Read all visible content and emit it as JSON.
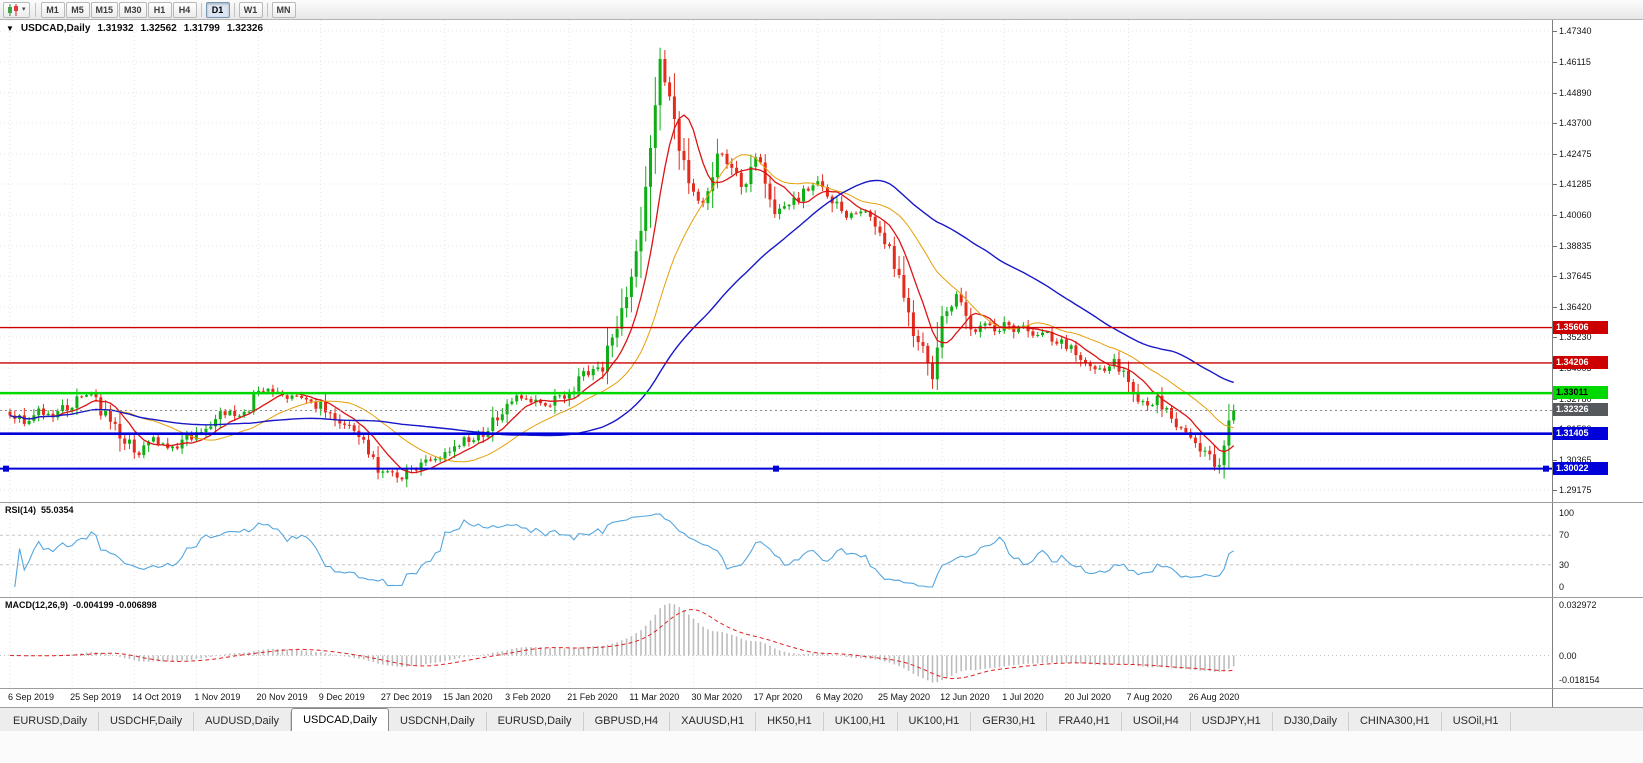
{
  "toolbar": {
    "chart_type_button": {
      "icon": "candlestick-chart-icon",
      "caret": "▾"
    },
    "timeframe_groups": [
      [
        "M1",
        "M5",
        "M15",
        "M30",
        "H1",
        "H4"
      ],
      [
        "D1"
      ],
      [
        "W1"
      ],
      [
        "MN"
      ]
    ],
    "active_timeframe": "D1"
  },
  "chart": {
    "dropdown_arrow": "▼",
    "symbol_label": "USDCAD,Daily",
    "ohlc_display": {
      "open": "1.31932",
      "high": "1.32562",
      "low": "1.31799",
      "close": "1.32326"
    }
  },
  "rsi_panel": {
    "name": "RSI(14)",
    "value": "55.0354"
  },
  "macd_panel": {
    "name": "MACD(12,26,9)",
    "values": "-0.004199 -0.006898"
  },
  "tab_bar": {
    "tabs": [
      {
        "label": "EURUSD,Daily",
        "active": false
      },
      {
        "label": "USDCHF,Daily",
        "active": false
      },
      {
        "label": "AUDUSD,Daily",
        "active": false
      },
      {
        "label": "USDCAD,Daily",
        "active": true
      },
      {
        "label": "USDCNH,Daily",
        "active": false
      },
      {
        "label": "EURUSD,Daily",
        "active": false
      },
      {
        "label": "GBPUSD,H4",
        "active": false
      },
      {
        "label": "XAUUSD,H1",
        "active": false
      },
      {
        "label": "HK50,H1",
        "active": false
      },
      {
        "label": "UK100,H1",
        "active": false
      },
      {
        "label": "UK100,H1",
        "active": false
      },
      {
        "label": "GER30,H1",
        "active": false
      },
      {
        "label": "FRA40,H1",
        "active": false
      },
      {
        "label": "USOil,H4",
        "active": false
      },
      {
        "label": "USDJPY,H1",
        "active": false
      },
      {
        "label": "DJ30,Daily",
        "active": false
      },
      {
        "label": "CHINA300,H1",
        "active": false
      },
      {
        "label": "USOil,H1",
        "active": false
      }
    ]
  },
  "colors": {
    "bull": "#0fae14",
    "bear": "#e32b1e",
    "ma_fast": "#dc1414",
    "ma_mid": "#e6a00a",
    "ma_slow": "#1818c8",
    "rsi_line": "#54a6df",
    "macd_hist": "#bdbdbd",
    "macd_signal": "#dd2222",
    "grid": "#e4e4e4",
    "level_dash": "#c6c6c6",
    "axis_text": "#141414",
    "current_price_badge": "#55585c"
  },
  "chart_data": {
    "type": "candlestick",
    "title": "USDCAD,Daily",
    "last_ohlc": {
      "open": 1.31932,
      "high": 1.32562,
      "low": 1.31799,
      "close": 1.32326
    },
    "price_range": [
      1.28703,
      1.47776
    ],
    "price_ticks": [
      "1.47340",
      "1.46115",
      "1.44890",
      "1.43700",
      "1.42475",
      "1.41285",
      "1.40060",
      "1.38835",
      "1.37645",
      "1.36420",
      "1.35230",
      "1.34005",
      "1.32780",
      "1.31590",
      "1.30365",
      "1.29175"
    ],
    "x_labels": [
      "6 Sep 2019",
      "25 Sep 2019",
      "14 Oct 2019",
      "1 Nov 2019",
      "20 Nov 2019",
      "9 Dec 2019",
      "27 Dec 2019",
      "15 Jan 2020",
      "3 Feb 2020",
      "21 Feb 2020",
      "11 Mar 2020",
      "30 Mar 2020",
      "17 Apr 2020",
      "6 May 2020",
      "25 May 2020",
      "12 Jun 2020",
      "1 Jul 2020",
      "20 Jul 2020",
      "7 Aug 2020",
      "26 Aug 2020"
    ],
    "candles_per_label": 13,
    "candle_count": 257,
    "close_path_anchors": [
      [
        0,
        1.3225
      ],
      [
        3,
        1.3188
      ],
      [
        6,
        1.3232
      ],
      [
        9,
        1.3208
      ],
      [
        13,
        1.3262
      ],
      [
        16,
        1.3296
      ],
      [
        19,
        1.3242
      ],
      [
        22,
        1.3155
      ],
      [
        25,
        1.3092
      ],
      [
        27,
        1.3046
      ],
      [
        29,
        1.3128
      ],
      [
        32,
        1.3098
      ],
      [
        35,
        1.3082
      ],
      [
        39,
        1.3148
      ],
      [
        42,
        1.3172
      ],
      [
        45,
        1.3228
      ],
      [
        48,
        1.3212
      ],
      [
        52,
        1.3298
      ],
      [
        54,
        1.3326
      ],
      [
        57,
        1.3282
      ],
      [
        60,
        1.3288
      ],
      [
        63,
        1.3258
      ],
      [
        65,
        1.3248
      ],
      [
        68,
        1.3182
      ],
      [
        71,
        1.3168
      ],
      [
        74,
        1.3092
      ],
      [
        77,
        1.3012
      ],
      [
        80,
        1.2978
      ],
      [
        82,
        1.2962
      ],
      [
        84,
        1.3006
      ],
      [
        87,
        1.3032
      ],
      [
        91,
        1.3052
      ],
      [
        94,
        1.3106
      ],
      [
        97,
        1.3128
      ],
      [
        100,
        1.3162
      ],
      [
        103,
        1.3242
      ],
      [
        106,
        1.3288
      ],
      [
        109,
        1.3268
      ],
      [
        112,
        1.3256
      ],
      [
        115,
        1.3282
      ],
      [
        117,
        1.3306
      ],
      [
        119,
        1.3346
      ],
      [
        121,
        1.3382
      ],
      [
        124,
        1.3424
      ],
      [
        126,
        1.3532
      ],
      [
        128,
        1.3624
      ],
      [
        130,
        1.3768
      ],
      [
        132,
        1.3926
      ],
      [
        134,
        1.4286
      ],
      [
        136,
        1.46
      ],
      [
        137,
        1.4516
      ],
      [
        139,
        1.4396
      ],
      [
        141,
        1.4186
      ],
      [
        143,
        1.4086
      ],
      [
        145,
        1.4026
      ],
      [
        147,
        1.4166
      ],
      [
        149,
        1.4262
      ],
      [
        151,
        1.4196
      ],
      [
        153,
        1.4116
      ],
      [
        156,
        1.4226
      ],
      [
        158,
        1.4136
      ],
      [
        160,
        1.4016
      ],
      [
        163,
        1.4046
      ],
      [
        166,
        1.4096
      ],
      [
        169,
        1.4136
      ],
      [
        172,
        1.4066
      ],
      [
        175,
        1.3996
      ],
      [
        178,
        1.4026
      ],
      [
        180,
        1.3976
      ],
      [
        182,
        1.3946
      ],
      [
        184,
        1.3856
      ],
      [
        186,
        1.3766
      ],
      [
        188,
        1.3626
      ],
      [
        190,
        1.3506
      ],
      [
        192,
        1.3426
      ],
      [
        193,
        1.3376
      ],
      [
        195,
        1.3566
      ],
      [
        197,
        1.3652
      ],
      [
        198,
        1.3696
      ],
      [
        200,
        1.3586
      ],
      [
        202,
        1.3546
      ],
      [
        204,
        1.3586
      ],
      [
        206,
        1.3536
      ],
      [
        208,
        1.3576
      ],
      [
        210,
        1.3546
      ],
      [
        212,
        1.3566
      ],
      [
        214,
        1.3526
      ],
      [
        216,
        1.3546
      ],
      [
        218,
        1.3516
      ],
      [
        221,
        1.3496
      ],
      [
        223,
        1.3456
      ],
      [
        225,
        1.3416
      ],
      [
        227,
        1.3386
      ],
      [
        229,
        1.3406
      ],
      [
        231,
        1.3426
      ],
      [
        233,
        1.3376
      ],
      [
        234,
        1.3336
      ],
      [
        236,
        1.3286
      ],
      [
        238,
        1.3256
      ],
      [
        240,
        1.3276
      ],
      [
        242,
        1.3226
      ],
      [
        244,
        1.3186
      ],
      [
        246,
        1.3166
      ],
      [
        247,
        1.3146
      ],
      [
        249,
        1.3096
      ],
      [
        251,
        1.3046
      ],
      [
        252,
        1.3008
      ],
      [
        253,
        1.3052
      ],
      [
        254,
        1.3088
      ],
      [
        255,
        1.3192
      ],
      [
        256,
        1.32326
      ]
    ],
    "wick_overrides": {
      "82": {
        "low": 1.2952
      },
      "136": {
        "high": 1.4668
      },
      "193": {
        "low": 1.3318
      },
      "252": {
        "low": 1.2994
      }
    },
    "horizontal_lines": [
      {
        "value": 1.35606,
        "label": "1.35606",
        "color": "#cc0000",
        "text_color": "#ffffff",
        "width": 1.4,
        "selected": false
      },
      {
        "value": 1.34206,
        "label": "1.34206",
        "color": "#cc0000",
        "text_color": "#ffffff",
        "width": 1.4,
        "selected": false
      },
      {
        "value": 1.33011,
        "label": "1.33011",
        "color": "#00d900",
        "text_color": "#000000",
        "width": 2.6,
        "selected": false
      },
      {
        "value": 1.31405,
        "label": "1.31405",
        "color": "#0000d9",
        "text_color": "#ffffff",
        "width": 2.6,
        "selected": false
      },
      {
        "value": 1.30022,
        "label": "1.30022",
        "color": "#0000d9",
        "text_color": "#ffffff",
        "width": 2,
        "selected": true
      }
    ],
    "current_price": {
      "value": 1.32326,
      "label": "1.32326"
    },
    "moving_averages": [
      {
        "period": 8,
        "color_key": "ma_fast",
        "width": 1.3
      },
      {
        "period": 21,
        "color_key": "ma_mid",
        "width": 1
      },
      {
        "period": 50,
        "color_key": "ma_slow",
        "width": 1.4
      }
    ],
    "rsi": {
      "period": 14,
      "display": "RSI(14) 55.0354",
      "axis": [
        "100",
        "70",
        "30",
        "0"
      ],
      "levels": [
        70,
        30
      ],
      "range": [
        0,
        100
      ]
    },
    "macd": {
      "fast": 12,
      "slow": 26,
      "signal": 9,
      "display": "MACD(12,26,9) -0.004199 -0.006898",
      "axis_max": "0.032972",
      "axis_zero": "0.00",
      "axis_min": "-0.018154"
    }
  }
}
